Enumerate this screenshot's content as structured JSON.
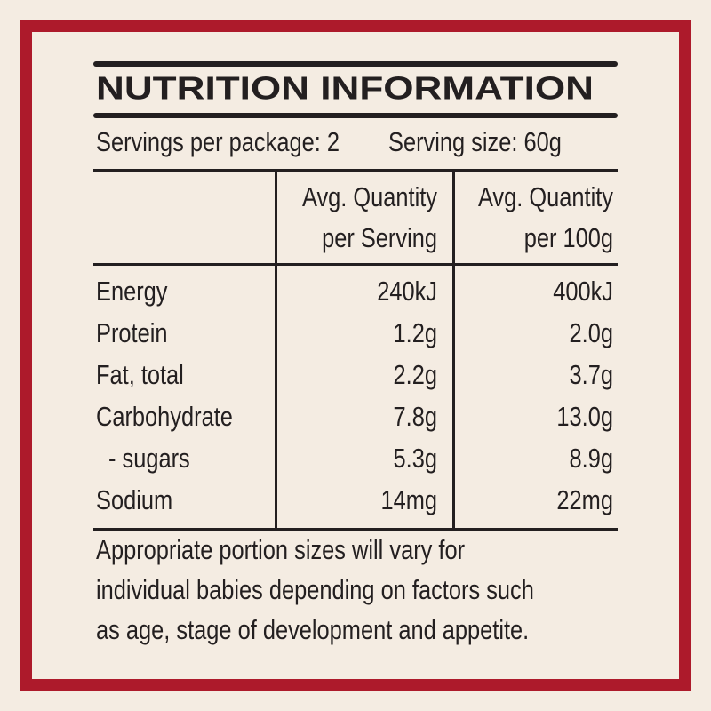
{
  "title": "NUTRITION INFORMATION",
  "servings": {
    "per_package": "Servings per package: 2",
    "serving_size": "Serving size: 60g"
  },
  "table": {
    "headers": [
      {
        "line1": "Avg. Quantity",
        "line2": "per Serving"
      },
      {
        "line1": "Avg. Quantity",
        "line2": "per 100g"
      }
    ],
    "rows": [
      [
        "Energy",
        "240kJ",
        "400kJ"
      ],
      [
        "Protein",
        "1.2g",
        "2.0g"
      ],
      [
        "Fat, total",
        "2.2g",
        "3.7g"
      ],
      [
        "Carbohydrate",
        "7.8g",
        "13.0g"
      ],
      [
        "- sugars",
        "5.3g",
        "8.9g"
      ],
      [
        "Sodium",
        "14mg",
        "22mg"
      ]
    ]
  },
  "footnote": [
    "Appropriate portion sizes will vary for",
    "individual babies depending on factors such",
    "as age, stage of development and appetite."
  ]
}
